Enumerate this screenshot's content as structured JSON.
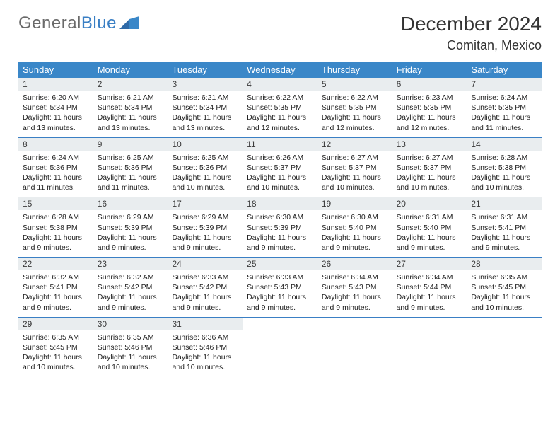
{
  "logo": {
    "text1": "General",
    "text2": "Blue"
  },
  "title": "December 2024",
  "location": "Comitan, Mexico",
  "colors": {
    "header_bg": "#3a87c8",
    "header_text": "#ffffff",
    "daynum_bg": "#e9edef",
    "rule": "#3a7fc4",
    "body_text": "#222222"
  },
  "day_names": [
    "Sunday",
    "Monday",
    "Tuesday",
    "Wednesday",
    "Thursday",
    "Friday",
    "Saturday"
  ],
  "weeks": [
    [
      {
        "n": "1",
        "sr": "6:20 AM",
        "ss": "5:34 PM",
        "dl": "11 hours and 13 minutes."
      },
      {
        "n": "2",
        "sr": "6:21 AM",
        "ss": "5:34 PM",
        "dl": "11 hours and 13 minutes."
      },
      {
        "n": "3",
        "sr": "6:21 AM",
        "ss": "5:34 PM",
        "dl": "11 hours and 13 minutes."
      },
      {
        "n": "4",
        "sr": "6:22 AM",
        "ss": "5:35 PM",
        "dl": "11 hours and 12 minutes."
      },
      {
        "n": "5",
        "sr": "6:22 AM",
        "ss": "5:35 PM",
        "dl": "11 hours and 12 minutes."
      },
      {
        "n": "6",
        "sr": "6:23 AM",
        "ss": "5:35 PM",
        "dl": "11 hours and 12 minutes."
      },
      {
        "n": "7",
        "sr": "6:24 AM",
        "ss": "5:35 PM",
        "dl": "11 hours and 11 minutes."
      }
    ],
    [
      {
        "n": "8",
        "sr": "6:24 AM",
        "ss": "5:36 PM",
        "dl": "11 hours and 11 minutes."
      },
      {
        "n": "9",
        "sr": "6:25 AM",
        "ss": "5:36 PM",
        "dl": "11 hours and 11 minutes."
      },
      {
        "n": "10",
        "sr": "6:25 AM",
        "ss": "5:36 PM",
        "dl": "11 hours and 10 minutes."
      },
      {
        "n": "11",
        "sr": "6:26 AM",
        "ss": "5:37 PM",
        "dl": "11 hours and 10 minutes."
      },
      {
        "n": "12",
        "sr": "6:27 AM",
        "ss": "5:37 PM",
        "dl": "11 hours and 10 minutes."
      },
      {
        "n": "13",
        "sr": "6:27 AM",
        "ss": "5:37 PM",
        "dl": "11 hours and 10 minutes."
      },
      {
        "n": "14",
        "sr": "6:28 AM",
        "ss": "5:38 PM",
        "dl": "11 hours and 10 minutes."
      }
    ],
    [
      {
        "n": "15",
        "sr": "6:28 AM",
        "ss": "5:38 PM",
        "dl": "11 hours and 9 minutes."
      },
      {
        "n": "16",
        "sr": "6:29 AM",
        "ss": "5:39 PM",
        "dl": "11 hours and 9 minutes."
      },
      {
        "n": "17",
        "sr": "6:29 AM",
        "ss": "5:39 PM",
        "dl": "11 hours and 9 minutes."
      },
      {
        "n": "18",
        "sr": "6:30 AM",
        "ss": "5:39 PM",
        "dl": "11 hours and 9 minutes."
      },
      {
        "n": "19",
        "sr": "6:30 AM",
        "ss": "5:40 PM",
        "dl": "11 hours and 9 minutes."
      },
      {
        "n": "20",
        "sr": "6:31 AM",
        "ss": "5:40 PM",
        "dl": "11 hours and 9 minutes."
      },
      {
        "n": "21",
        "sr": "6:31 AM",
        "ss": "5:41 PM",
        "dl": "11 hours and 9 minutes."
      }
    ],
    [
      {
        "n": "22",
        "sr": "6:32 AM",
        "ss": "5:41 PM",
        "dl": "11 hours and 9 minutes."
      },
      {
        "n": "23",
        "sr": "6:32 AM",
        "ss": "5:42 PM",
        "dl": "11 hours and 9 minutes."
      },
      {
        "n": "24",
        "sr": "6:33 AM",
        "ss": "5:42 PM",
        "dl": "11 hours and 9 minutes."
      },
      {
        "n": "25",
        "sr": "6:33 AM",
        "ss": "5:43 PM",
        "dl": "11 hours and 9 minutes."
      },
      {
        "n": "26",
        "sr": "6:34 AM",
        "ss": "5:43 PM",
        "dl": "11 hours and 9 minutes."
      },
      {
        "n": "27",
        "sr": "6:34 AM",
        "ss": "5:44 PM",
        "dl": "11 hours and 9 minutes."
      },
      {
        "n": "28",
        "sr": "6:35 AM",
        "ss": "5:45 PM",
        "dl": "11 hours and 10 minutes."
      }
    ],
    [
      {
        "n": "29",
        "sr": "6:35 AM",
        "ss": "5:45 PM",
        "dl": "11 hours and 10 minutes."
      },
      {
        "n": "30",
        "sr": "6:35 AM",
        "ss": "5:46 PM",
        "dl": "11 hours and 10 minutes."
      },
      {
        "n": "31",
        "sr": "6:36 AM",
        "ss": "5:46 PM",
        "dl": "11 hours and 10 minutes."
      },
      null,
      null,
      null,
      null
    ]
  ],
  "labels": {
    "sunrise": "Sunrise:",
    "sunset": "Sunset:",
    "daylight": "Daylight:"
  }
}
